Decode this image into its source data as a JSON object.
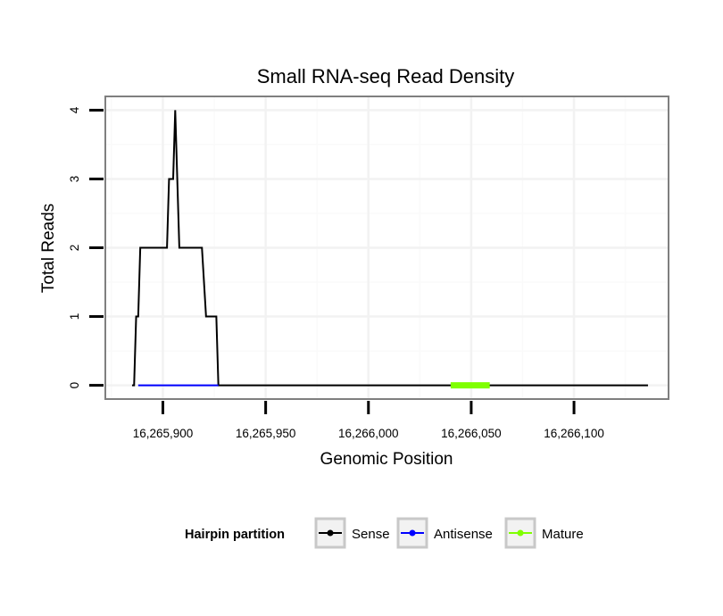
{
  "chart_data": {
    "type": "line",
    "title": "Small RNA-seq Read Density",
    "xlabel": "Genomic Position",
    "ylabel": "Total Reads",
    "xlim": [
      16265872,
      16266146
    ],
    "ylim": [
      -0.2,
      4.2
    ],
    "x_ticks": [
      16265900,
      16265950,
      16266000,
      16266050,
      16266100
    ],
    "x_tick_labels": [
      "16,265,900",
      "16,265,950",
      "16,266,000",
      "16,266,050",
      "16,266,100"
    ],
    "y_ticks": [
      0,
      1,
      2,
      3,
      4
    ],
    "y_tick_labels": [
      "0",
      "1",
      "2",
      "3",
      "4"
    ],
    "grid": true,
    "legend": {
      "title": "Hairpin partition",
      "position": "bottom",
      "entries": [
        {
          "name": "Sense",
          "color": "#000000"
        },
        {
          "name": "Antisense",
          "color": "#0000ff"
        },
        {
          "name": "Mature",
          "color": "#7fff00"
        }
      ]
    },
    "series": [
      {
        "name": "Sense",
        "color": "#000000",
        "step": true,
        "points": [
          [
            16265885,
            0
          ],
          [
            16265886,
            0
          ],
          [
            16265887,
            1
          ],
          [
            16265888,
            1
          ],
          [
            16265889,
            2
          ],
          [
            16265902,
            2
          ],
          [
            16265903,
            3
          ],
          [
            16265905,
            3
          ],
          [
            16265906,
            4
          ],
          [
            16265908,
            2
          ],
          [
            16265919,
            2
          ],
          [
            16265921,
            1
          ],
          [
            16265926,
            1
          ],
          [
            16265927,
            0
          ],
          [
            16266136,
            0
          ]
        ]
      },
      {
        "name": "Antisense",
        "color": "#0000ff",
        "step": false,
        "points": [
          [
            16265888,
            0
          ],
          [
            16265927,
            0
          ]
        ]
      },
      {
        "name": "Mature",
        "color": "#7fff00",
        "step": false,
        "thick": true,
        "points": [
          [
            16266040,
            0
          ],
          [
            16266059,
            0
          ]
        ]
      }
    ]
  }
}
